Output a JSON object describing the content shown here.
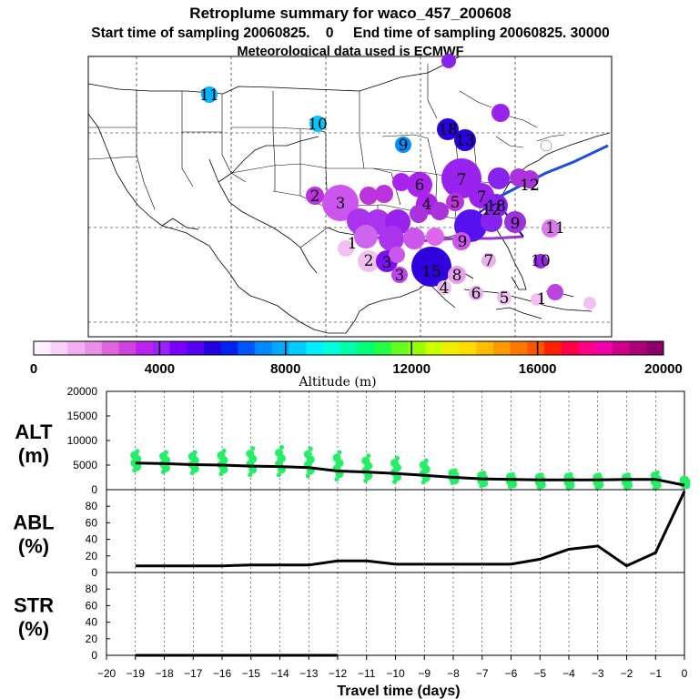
{
  "header": {
    "title": "Retroplume summary for waco_457_200608",
    "subtitle": "Start time of sampling 20060825.    0     End time of sampling 20060825. 30000",
    "met": "Meteorological data used is ECMWF"
  },
  "colorbar": {
    "ticks": [
      "0",
      "4000",
      "8000",
      "12000",
      "16000",
      "20000"
    ],
    "label": "Altitude (m)",
    "colors": [
      "#fff0ff",
      "#f8d0f8",
      "#f0b0f0",
      "#e890e8",
      "#dd66dd",
      "#cc44dd",
      "#bb22ee",
      "#9922ff",
      "#7700ff",
      "#5500ee",
      "#2200dd",
      "#0022ee",
      "#0055ff",
      "#0088ff",
      "#00aaff",
      "#00ccff",
      "#00eeff",
      "#00ffdd",
      "#00ffaa",
      "#00ff77",
      "#22ff44",
      "#66ff22",
      "#99ff00",
      "#ccff00",
      "#eeee00",
      "#ffdd00",
      "#ffbb00",
      "#ff9900",
      "#ff7700",
      "#ff5500",
      "#ff2200",
      "#ff0044",
      "#ff0088",
      "#ee00aa",
      "#cc0088",
      "#aa0077",
      "#880066"
    ]
  },
  "map": {
    "plume_points": [
      {
        "label": "11",
        "alt": 7500
      },
      {
        "label": "10",
        "alt": 7500
      },
      {
        "label": "9",
        "alt": 6000
      },
      {
        "label": "18",
        "alt": 4500
      },
      {
        "label": "13",
        "alt": 4500
      },
      {
        "label": "7",
        "alt": 3600
      },
      {
        "label": "6",
        "alt": 3400
      },
      {
        "label": "3",
        "alt": 2400
      },
      {
        "label": "2",
        "alt": 2800
      },
      {
        "label": "15",
        "alt": 4400
      },
      {
        "label": "12",
        "alt": 3600
      },
      {
        "label": "5",
        "alt": 2000
      },
      {
        "label": "8",
        "alt": 1500
      },
      {
        "label": "4",
        "alt": 1200
      },
      {
        "label": "2",
        "alt": 700
      },
      {
        "label": "1",
        "alt": 500
      },
      {
        "label": "10",
        "alt": 3000
      },
      {
        "label": "11",
        "alt": 2500
      },
      {
        "label": "7",
        "alt": 1500
      },
      {
        "label": "6",
        "alt": 1200
      },
      {
        "label": "5",
        "alt": 900
      },
      {
        "label": "9",
        "alt": 2200
      },
      {
        "label": "18",
        "alt": 3700
      },
      {
        "label": "12",
        "alt": 2600
      },
      {
        "label": "4",
        "alt": 3500
      },
      {
        "label": "9",
        "alt": 2800
      },
      {
        "label": "7",
        "alt": 3200
      },
      {
        "label": "1",
        "alt": 1400
      },
      {
        "label": "3",
        "alt": 2500
      },
      {
        "label": "3",
        "alt": 1800
      }
    ]
  },
  "chart_data": [
    {
      "type": "line",
      "panel": "ALT (m)",
      "ylabel_line1": "ALT",
      "ylabel_line2": "(m)",
      "ylim": [
        0,
        20000
      ],
      "yticks": [
        "0",
        "5000",
        "10000",
        "15000",
        "20000"
      ],
      "x": [
        -19,
        -18,
        -17,
        -16,
        -15,
        -14,
        -13,
        -12,
        -11,
        -10,
        -9,
        -8,
        -7,
        -6,
        -5,
        -4,
        -3,
        -2,
        -1,
        0
      ],
      "series": [
        {
          "name": "median altitude",
          "values": [
            5400,
            5300,
            5100,
            5000,
            4800,
            4700,
            4500,
            3800,
            3600,
            3300,
            2900,
            2500,
            2200,
            2100,
            2000,
            2000,
            2000,
            2100,
            2100,
            900
          ]
        },
        {
          "name": "particle altitudes (max)",
          "values": [
            7800,
            7600,
            7600,
            7900,
            8400,
            8600,
            8300,
            7600,
            6900,
            6400,
            5900,
            3900,
            3400,
            3100,
            3000,
            3100,
            3000,
            3000,
            3500,
            2300
          ]
        },
        {
          "name": "particle altitudes (min)",
          "values": [
            3900,
            3600,
            3400,
            3200,
            3000,
            3000,
            2800,
            2100,
            1800,
            1600,
            1500,
            1400,
            800,
            600,
            500,
            400,
            500,
            400,
            300,
            600
          ]
        }
      ]
    },
    {
      "type": "line",
      "panel": "ABL (%)",
      "ylabel_line1": "ABL",
      "ylabel_line2": "(%)",
      "ylim": [
        0,
        100
      ],
      "yticks": [
        "0",
        "20",
        "40",
        "60",
        "80"
      ],
      "x": [
        -19,
        -18,
        -17,
        -16,
        -15,
        -14,
        -13,
        -12,
        -11,
        -10,
        -9,
        -8,
        -7,
        -6,
        -5,
        -4,
        -3,
        -2,
        -1,
        0
      ],
      "series": [
        {
          "name": "ABL",
          "values": [
            8,
            8,
            8,
            8,
            9,
            9,
            9,
            14,
            14,
            10,
            10,
            10,
            10,
            10,
            16,
            28,
            32,
            8,
            24,
            98
          ]
        }
      ]
    },
    {
      "type": "line",
      "panel": "STR (%)",
      "ylabel_line1": "STR",
      "ylabel_line2": "(%)",
      "ylim": [
        0,
        100
      ],
      "yticks": [
        "0",
        "20",
        "40",
        "60",
        "80"
      ],
      "x": [
        -19,
        -18,
        -17,
        -16,
        -15,
        -14,
        -13,
        -12
      ],
      "series": [
        {
          "name": "STR",
          "values": [
            0,
            0,
            0,
            0,
            0,
            0,
            0,
            0
          ]
        }
      ]
    }
  ],
  "xaxis": {
    "ticks": [
      "−20",
      "−19",
      "−18",
      "−17",
      "−16",
      "−15",
      "−14",
      "−13",
      "−12",
      "−11",
      "−10",
      "−9",
      "−8",
      "−7",
      "−6",
      "−5",
      "−4",
      "−3",
      "−2",
      "−1",
      "0"
    ],
    "label": "Travel time (days)"
  }
}
